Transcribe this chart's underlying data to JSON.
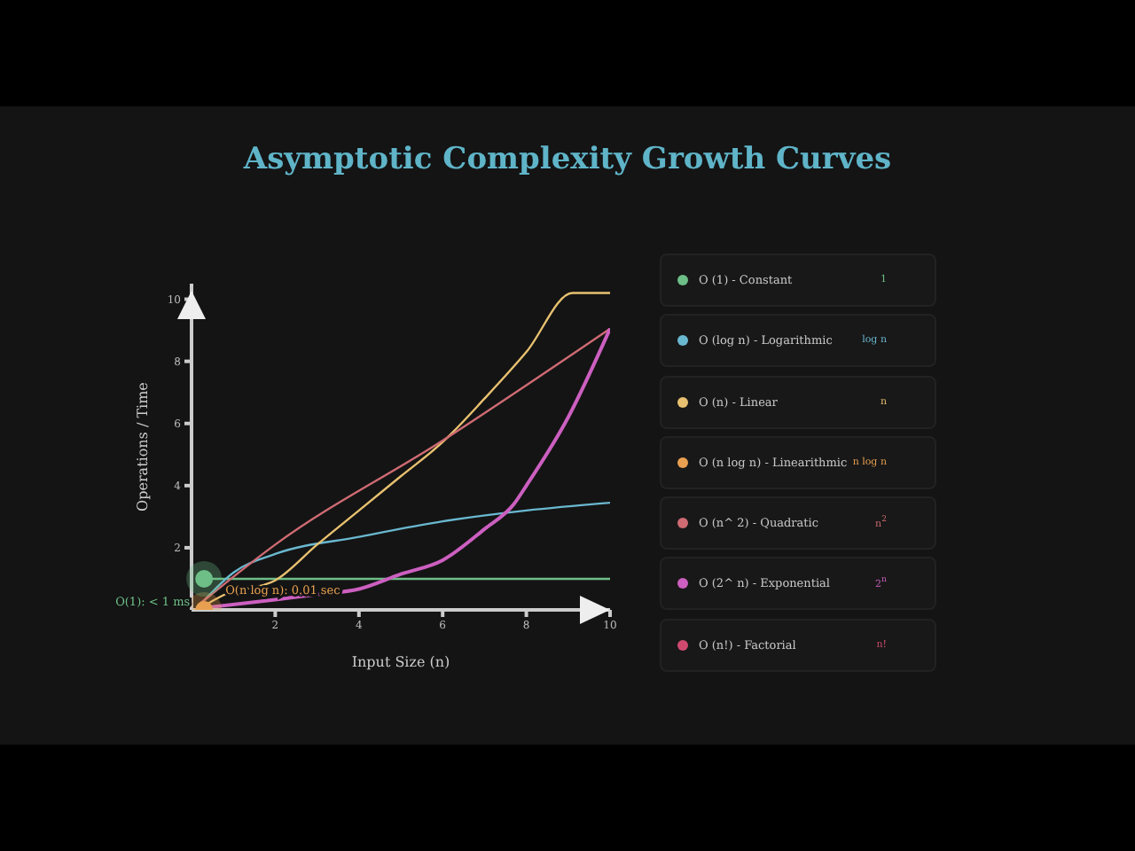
{
  "chart_data": {
    "type": "line",
    "title": "Asymptotic Complexity Growth Curves",
    "xlabel": "Input Size (n)",
    "ylabel": "Operations / Time",
    "xlim": [
      0,
      10
    ],
    "ylim": [
      0,
      10.5
    ],
    "xticks": [
      2,
      4,
      6,
      8,
      10
    ],
    "yticks": [
      2,
      4,
      6,
      8,
      10
    ],
    "legend": "right",
    "grid": false,
    "line_style": "solid",
    "series": [
      {
        "name": "O (1) - Constant",
        "color": "#6dbf87",
        "x": [
          0.3,
          10
        ],
        "values": [
          1,
          1
        ]
      },
      {
        "name": "O (log n) - Logarithmic",
        "color": "#6ab8d0",
        "x": [
          0.3,
          1,
          2,
          4,
          6,
          8,
          10
        ],
        "values": [
          0.3,
          1.2,
          1.8,
          2.35,
          2.85,
          3.2,
          3.45
        ]
      },
      {
        "name": "O (n) - Linear",
        "color": "#e8c170",
        "x": [
          0.2,
          0.8,
          2,
          3,
          4,
          5,
          6,
          7,
          8,
          9.1,
          10
        ],
        "values": [
          0.05,
          0.5,
          0.95,
          2.1,
          3.2,
          4.3,
          5.4,
          6.8,
          8.3,
          10.2,
          10.2
        ]
      },
      {
        "name": "O (n log n) - Linearithmic",
        "color": "#e8a050",
        "type": "scatter",
        "x": [
          0.3
        ],
        "values": [
          0
        ]
      },
      {
        "name": "O (n^ 2) - Quadratic",
        "color": "#cf6b73",
        "x": [
          0.2,
          2,
          6,
          10
        ],
        "values": [
          0.2,
          2.1,
          5.45,
          9.05
        ]
      },
      {
        "name": "O (2^ n) - Exponential",
        "color": "#cc5fc0",
        "x": [
          0.2,
          2,
          3,
          4,
          5,
          6,
          7,
          7.7,
          8,
          9,
          10
        ],
        "values": [
          0.05,
          0.33,
          0.5,
          0.67,
          1.15,
          1.6,
          2.6,
          3.4,
          4,
          6.2,
          9.05
        ]
      },
      {
        "name": "O (n!) - Factorial",
        "color": "#d04a70"
      }
    ],
    "annotations": [
      {
        "text": "O(1): < 1 ms",
        "x": 0.3,
        "y": 1
      },
      {
        "text": "O(n log n): 0.01 sec",
        "x": 0.3,
        "y": 0
      },
      "1",
      "log n",
      "n",
      "n log n",
      "n$^{2}$",
      "2$^{n}$",
      "n!"
    ]
  }
}
